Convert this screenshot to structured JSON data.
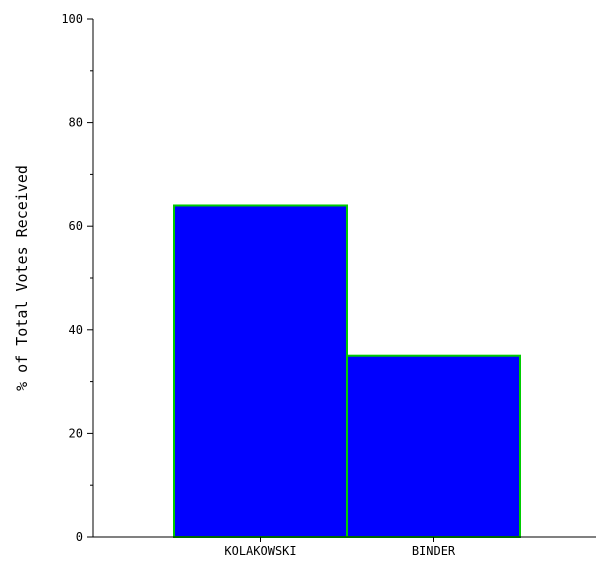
{
  "chart_data": {
    "type": "bar",
    "title": "",
    "xlabel": "",
    "ylabel": "% of Total Votes Received",
    "categories": [
      "KOLAKOWSKI",
      "BINDER"
    ],
    "values": [
      64,
      35
    ],
    "ylim": [
      0,
      100
    ],
    "yticks": [
      0,
      20,
      40,
      60,
      80,
      100
    ],
    "ytick_labels": [
      "0",
      "20",
      "40",
      "60",
      "80",
      "100"
    ],
    "minor_ticks_between": 1,
    "grid": false,
    "legend": "none",
    "colors": {
      "bar_fill": "#0000ff",
      "bar_edge": "#00cc00",
      "axis": "#000000",
      "background": "#ffffff"
    }
  }
}
